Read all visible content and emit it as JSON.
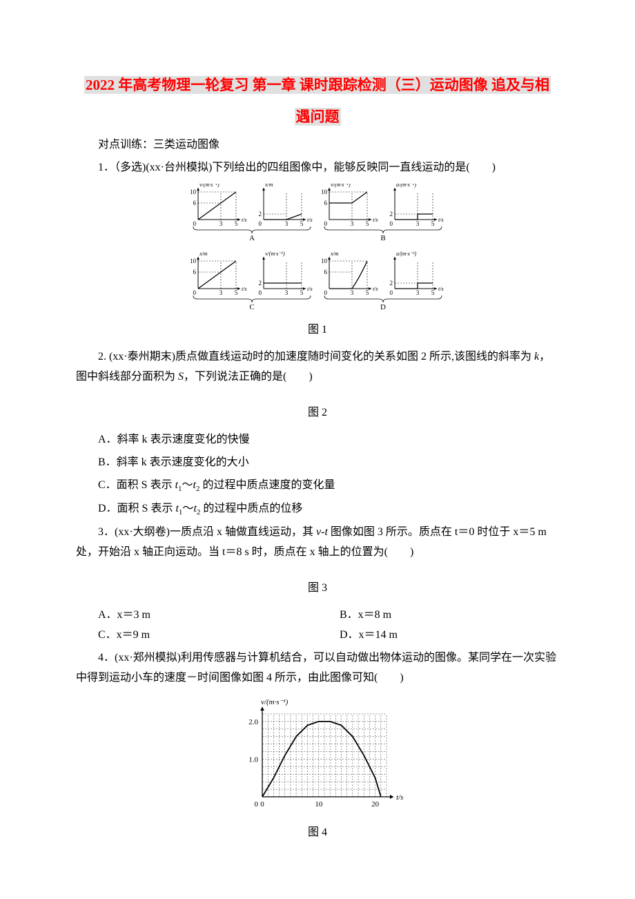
{
  "title_line1": "2022 年高考物理一轮复习 第一章 课时跟踪检测（三）运动图像 追及与相",
  "title_line2": "遇问题",
  "section_header": "对点训练：三类运动图像",
  "q1_text": "1．（多选)(xx·台州模拟)下列给出的四组图像中，能够反映同一直线运动的是(　　)",
  "fig1_label": "图 1",
  "q2_text": "2. (xx·泰州期末)质点做直线运动时的加速度随时间变化的关系如图 2 所示,该图线的斜率为 ",
  "q2_text_b": "，图中斜线部分面积为 ",
  "q2_text_c": "，下列说法正确的是(　　)",
  "fig2_label": "图 2",
  "q2_opts": {
    "A": "A．斜率 k 表示速度变化的快慢",
    "B": "B．斜率 k 表示速度变化的大小",
    "C_pre": "C．面积 S 表示 ",
    "C_mid": "～",
    "C_post": " 的过程中质点速度的变化量",
    "D_pre": "D．面积 S 表示 ",
    "D_mid": "～",
    "D_post": " 的过程中质点的位移"
  },
  "q3_text_a": "3．(xx·大纲卷)一质点沿 x 轴做直线运动，其 ",
  "q3_text_b": " 图像如图 3 所示。质点在 t＝0 时位于 x＝5 m 处，开始沿 x 轴正向运动。当 t＝8 s 时，质点在 x 轴上的位置为(　　)",
  "fig3_label": "图 3",
  "q3_opts": {
    "A": "A．x＝3 m",
    "B": "B．x＝8 m",
    "C": "C．x＝9 m",
    "D": "D．x＝14 m"
  },
  "q4_text": "4．(xx·郑州模拟)利用传感器与计算机结合，可以自动做出物体运动的图像。某同学在一次实验中得到运动小车的速度－时间图像如图 4 所示，由此图像可知(　　)",
  "fig4_label": "图 4",
  "sym": {
    "k": "k",
    "S": "S",
    "t1": "t",
    "t1s": "1",
    "t2": "t",
    "t2s": "2",
    "v": "v",
    "t": "t"
  },
  "fig1": {
    "row1": [
      {
        "ylabel": "v/(m·s⁻¹)",
        "xlabel": "t/s",
        "yticks": [
          "6",
          "10"
        ],
        "xticks": [
          "0",
          "3",
          "5"
        ],
        "kind": "piecewise-v"
      },
      {
        "ylabel": "x/m",
        "xlabel": "t/s",
        "yticks": [
          "2"
        ],
        "xticks": [
          "0",
          "3",
          "5"
        ],
        "kind": "flat-then-rise"
      },
      {
        "ylabel": "v/(m·s⁻¹)",
        "xlabel": "t/s",
        "yticks": [
          "6",
          "10"
        ],
        "xticks": [
          "0",
          "3",
          "5"
        ],
        "kind": "flat-then-rise-v"
      },
      {
        "ylabel": "a/(m·s⁻²)",
        "xlabel": "t/s",
        "yticks": [
          "2"
        ],
        "xticks": [
          "0",
          "3",
          "5"
        ],
        "kind": "step-a"
      }
    ],
    "row2": [
      {
        "ylabel": "x/m",
        "xlabel": "t/s",
        "yticks": [
          "6",
          "10"
        ],
        "xticks": [
          "0",
          "3",
          "5"
        ],
        "kind": "rise-then-flat-x"
      },
      {
        "ylabel": "v/(m·s⁻¹)",
        "xlabel": "t/s",
        "yticks": [
          "2"
        ],
        "xticks": [
          "0",
          "3",
          "5"
        ],
        "kind": "flat-line"
      },
      {
        "ylabel": "x/m",
        "xlabel": "t/s",
        "yticks": [
          "6",
          "10"
        ],
        "xticks": [
          "0",
          "3",
          "5"
        ],
        "kind": "delay-rise-x"
      },
      {
        "ylabel": "a/(m·s⁻²)",
        "xlabel": "t/s",
        "yticks": [
          "2"
        ],
        "xticks": [
          "0",
          "3",
          "5"
        ],
        "kind": "step-a"
      }
    ],
    "group_labels": [
      "A",
      "B",
      "C",
      "D"
    ],
    "colors": {
      "axis": "#000000",
      "line": "#000000",
      "dash": "#000000"
    }
  },
  "fig4": {
    "ylabel": "v/(m·s⁻¹)",
    "xlabel": "t/s",
    "yticks": [
      {
        "v": 1.0,
        "label": "1.0"
      },
      {
        "v": 2.0,
        "label": "2.0"
      }
    ],
    "xticks": [
      {
        "v": 0,
        "label": "0"
      },
      {
        "v": 10,
        "label": "10"
      },
      {
        "v": 20,
        "label": "20"
      }
    ],
    "xlim": [
      0,
      22
    ],
    "ylim": [
      0,
      2.2
    ],
    "curve": [
      [
        0,
        0
      ],
      [
        2,
        0.5
      ],
      [
        4,
        1.1
      ],
      [
        6,
        1.6
      ],
      [
        8,
        1.9
      ],
      [
        10,
        2.0
      ],
      [
        12,
        2.0
      ],
      [
        14,
        1.9
      ],
      [
        16,
        1.6
      ],
      [
        18,
        1.1
      ],
      [
        20,
        0.5
      ],
      [
        21,
        0
      ]
    ],
    "grid_minor_x": 1,
    "grid_minor_y": 0.2,
    "colors": {
      "axis": "#000000",
      "grid": "#000000",
      "curve": "#000000",
      "bg": "#ffffff"
    }
  }
}
